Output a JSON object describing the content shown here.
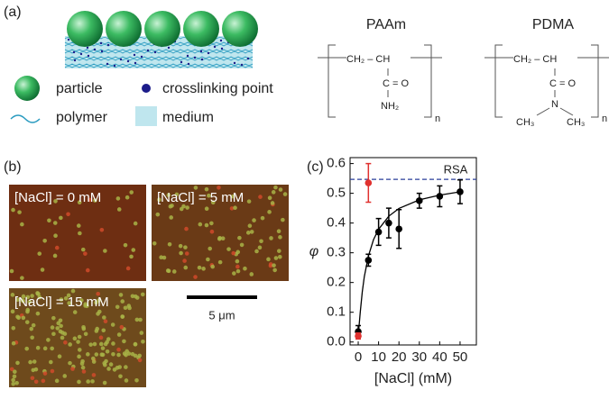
{
  "panel_a": {
    "label": "(a)",
    "legend": [
      "particle",
      "crosslinking point",
      "polymer",
      "medium"
    ],
    "structures": [
      {
        "name": "PAAm",
        "backbone": "CH₂ – CH",
        "group": "C = O",
        "side": "NH₂",
        "repeat": "n"
      },
      {
        "name": "PDMA",
        "backbone": "CH₂ – CH",
        "group": "C = O",
        "side": "N",
        "methyls": [
          "CH₃",
          "CH₃"
        ],
        "repeat": "n"
      }
    ]
  },
  "panel_b": {
    "label": "(b)",
    "images": [
      "[NaCl] = 0 mM",
      "[NaCl] = 5 mM",
      "[NaCl] = 15 mM"
    ],
    "scale_bar": "5 μm"
  },
  "chart_data": {
    "type": "scatter",
    "label": "(c)",
    "x_label": "[NaCl] (mM)",
    "y_label": "φ",
    "xlim": [
      -4,
      58
    ],
    "ylim": [
      -0.01,
      0.62
    ],
    "xticks": [
      0,
      10,
      20,
      30,
      40,
      50
    ],
    "yticks": [
      {
        "value": 0,
        "label": "0.0"
      },
      0.1,
      0.2,
      0.3,
      0.4,
      0.5,
      0.6
    ],
    "series": [
      {
        "color": "#000000",
        "x": [
          0,
          5,
          10,
          15,
          20,
          30,
          40,
          50
        ],
        "values": [
          0.035,
          0.275,
          0.37,
          0.4,
          0.38,
          0.475,
          0.49,
          0.505
        ],
        "errors": [
          0.02,
          0.02,
          0.045,
          0.05,
          0.065,
          0.025,
          0.035,
          0.04
        ]
      },
      {
        "color": "#e0312f",
        "x": [
          0,
          5
        ],
        "values": [
          0.02,
          0.535
        ],
        "errors": [
          0.01,
          0.065
        ]
      }
    ],
    "fit": {
      "color": "#000000",
      "x": [
        0,
        1,
        2,
        3,
        5,
        7.5,
        10,
        15,
        20,
        30,
        40,
        50
      ],
      "values": [
        0.02,
        0.1,
        0.169,
        0.22,
        0.289,
        0.344,
        0.379,
        0.423,
        0.449,
        0.478,
        0.494,
        0.505
      ]
    },
    "reference": {
      "label": "RSA",
      "value": 0.547,
      "color": "#2a3f9a"
    }
  }
}
